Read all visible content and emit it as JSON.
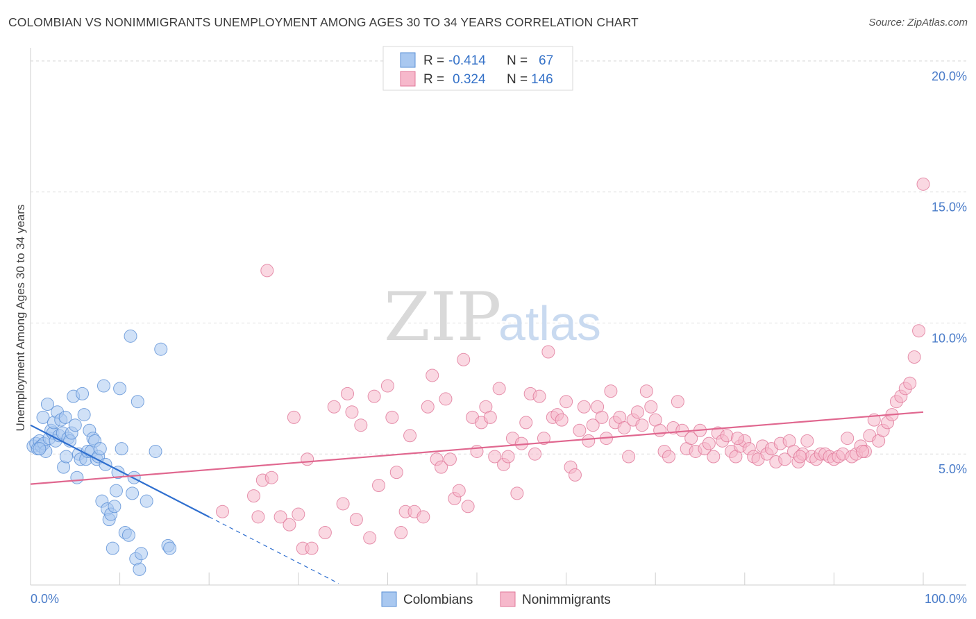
{
  "header": {
    "title": "COLOMBIAN VS NONIMMIGRANTS UNEMPLOYMENT AMONG AGES 30 TO 34 YEARS CORRELATION CHART",
    "source": "Source: ZipAtlas.com"
  },
  "watermark": {
    "zip": "ZIP",
    "atlas": "atlas"
  },
  "legend": {
    "rows": [
      {
        "r_label": "R =",
        "r_value": "-0.414",
        "n_label": "N =",
        "n_value": "67",
        "color": "#a9c8f0",
        "stroke": "#5a8fd6"
      },
      {
        "r_label": "R =",
        "r_value": "0.324",
        "n_label": "N =",
        "n_value": "146",
        "color": "#f6b8cb",
        "stroke": "#e07799"
      }
    ]
  },
  "bottom_legend": [
    "Colombians",
    "Nonimmigrants"
  ],
  "chart_data": {
    "type": "scatter",
    "ylabel": "Unemployment Among Ages 30 to 34 years",
    "xlim": [
      0,
      100
    ],
    "ylim": [
      0,
      20.5
    ],
    "x_tick_labels": [
      "0.0%",
      "100.0%"
    ],
    "y_ticks": [
      5,
      10,
      15,
      20
    ],
    "y_tick_labels": [
      "5.0%",
      "10.0%",
      "15.0%",
      "20.0%"
    ],
    "grid": true,
    "series": [
      {
        "name": "Colombians",
        "color": "#a9c8f0",
        "stroke": "#5a8fd6",
        "trend": {
          "x0": 0,
          "y0": 6.1,
          "x1": 20,
          "y1": 2.6,
          "dash_to_x": 34.5
        },
        "points": [
          [
            0.3,
            5.3
          ],
          [
            0.6,
            5.4
          ],
          [
            0.8,
            5.2
          ],
          [
            1.0,
            5.5
          ],
          [
            1.2,
            5.3
          ],
          [
            1.4,
            6.4
          ],
          [
            1.5,
            5.4
          ],
          [
            1.7,
            5.1
          ],
          [
            1.9,
            6.9
          ],
          [
            2.1,
            5.6
          ],
          [
            2.3,
            5.9
          ],
          [
            2.5,
            5.8
          ],
          [
            2.6,
            6.2
          ],
          [
            2.8,
            5.5
          ],
          [
            3.0,
            6.6
          ],
          [
            3.2,
            5.7
          ],
          [
            3.4,
            6.3
          ],
          [
            3.6,
            5.8
          ],
          [
            3.7,
            4.5
          ],
          [
            3.9,
            6.4
          ],
          [
            4.0,
            4.9
          ],
          [
            4.2,
            5.6
          ],
          [
            4.4,
            5.5
          ],
          [
            4.6,
            5.8
          ],
          [
            4.8,
            7.2
          ],
          [
            5.0,
            6.1
          ],
          [
            5.2,
            4.1
          ],
          [
            5.4,
            5.0
          ],
          [
            5.6,
            4.8
          ],
          [
            5.8,
            7.3
          ],
          [
            6.0,
            6.5
          ],
          [
            6.2,
            4.8
          ],
          [
            6.4,
            5.1
          ],
          [
            6.6,
            5.9
          ],
          [
            6.8,
            5.1
          ],
          [
            7.0,
            5.6
          ],
          [
            7.2,
            5.5
          ],
          [
            7.4,
            4.8
          ],
          [
            7.6,
            4.9
          ],
          [
            7.8,
            5.2
          ],
          [
            8.0,
            3.2
          ],
          [
            8.2,
            7.6
          ],
          [
            8.4,
            4.6
          ],
          [
            8.6,
            2.9
          ],
          [
            8.8,
            2.5
          ],
          [
            9.0,
            2.7
          ],
          [
            9.2,
            1.4
          ],
          [
            9.4,
            3.0
          ],
          [
            9.6,
            3.6
          ],
          [
            9.8,
            4.3
          ],
          [
            10.0,
            7.5
          ],
          [
            10.2,
            5.2
          ],
          [
            10.6,
            2.0
          ],
          [
            11.0,
            1.9
          ],
          [
            11.2,
            9.5
          ],
          [
            11.4,
            3.5
          ],
          [
            11.6,
            4.1
          ],
          [
            11.8,
            1.0
          ],
          [
            12.0,
            7.0
          ],
          [
            12.2,
            0.6
          ],
          [
            12.4,
            1.2
          ],
          [
            13.0,
            3.2
          ],
          [
            14.0,
            5.1
          ],
          [
            14.6,
            9.0
          ],
          [
            15.4,
            1.5
          ],
          [
            15.6,
            1.4
          ],
          [
            1.0,
            5.2
          ]
        ]
      },
      {
        "name": "Nonimmigrants",
        "color": "#f6b8cb",
        "stroke": "#e07799",
        "trend": {
          "x0": 0,
          "y0": 3.85,
          "x1": 100,
          "y1": 6.6
        },
        "points": [
          [
            21.5,
            2.8
          ],
          [
            25,
            3.4
          ],
          [
            25.5,
            2.6
          ],
          [
            26,
            4.0
          ],
          [
            26.5,
            12.0
          ],
          [
            27,
            4.1
          ],
          [
            28,
            2.6
          ],
          [
            29,
            2.3
          ],
          [
            29.5,
            6.4
          ],
          [
            30,
            2.7
          ],
          [
            30.5,
            1.4
          ],
          [
            31,
            4.8
          ],
          [
            31.5,
            1.4
          ],
          [
            33,
            2.0
          ],
          [
            34,
            6.8
          ],
          [
            35,
            3.1
          ],
          [
            35.5,
            7.3
          ],
          [
            36,
            6.6
          ],
          [
            36.5,
            2.5
          ],
          [
            37,
            6.1
          ],
          [
            38,
            1.8
          ],
          [
            38.5,
            7.2
          ],
          [
            39,
            3.8
          ],
          [
            40,
            7.6
          ],
          [
            40.5,
            6.4
          ],
          [
            41,
            4.3
          ],
          [
            41.5,
            2.0
          ],
          [
            42,
            2.8
          ],
          [
            42.5,
            5.7
          ],
          [
            43,
            2.8
          ],
          [
            44,
            2.6
          ],
          [
            44.5,
            6.8
          ],
          [
            45,
            8.0
          ],
          [
            45.5,
            4.8
          ],
          [
            46,
            4.5
          ],
          [
            46.5,
            7.1
          ],
          [
            47,
            4.8
          ],
          [
            47.5,
            3.3
          ],
          [
            48,
            3.6
          ],
          [
            48.5,
            8.6
          ],
          [
            49,
            3.0
          ],
          [
            49.5,
            6.4
          ],
          [
            50,
            5.1
          ],
          [
            50.5,
            6.2
          ],
          [
            51,
            6.8
          ],
          [
            51.5,
            6.4
          ],
          [
            52,
            4.9
          ],
          [
            52.5,
            7.5
          ],
          [
            53,
            4.6
          ],
          [
            53.5,
            4.9
          ],
          [
            54,
            5.6
          ],
          [
            54.5,
            3.5
          ],
          [
            55,
            5.4
          ],
          [
            55.5,
            6.2
          ],
          [
            56,
            7.3
          ],
          [
            56.5,
            5.0
          ],
          [
            57,
            7.2
          ],
          [
            57.5,
            5.6
          ],
          [
            58,
            8.9
          ],
          [
            58.5,
            6.4
          ],
          [
            59,
            6.5
          ],
          [
            59.5,
            6.3
          ],
          [
            60,
            7.0
          ],
          [
            60.5,
            4.5
          ],
          [
            61,
            4.2
          ],
          [
            61.5,
            5.9
          ],
          [
            62,
            6.8
          ],
          [
            62.5,
            5.5
          ],
          [
            63,
            6.1
          ],
          [
            63.5,
            6.8
          ],
          [
            64,
            6.4
          ],
          [
            64.5,
            5.6
          ],
          [
            65,
            7.4
          ],
          [
            65.5,
            6.2
          ],
          [
            66,
            6.4
          ],
          [
            66.5,
            6.0
          ],
          [
            67,
            4.9
          ],
          [
            67.5,
            6.3
          ],
          [
            68,
            6.6
          ],
          [
            68.5,
            6.1
          ],
          [
            69,
            7.4
          ],
          [
            69.5,
            6.8
          ],
          [
            70,
            6.3
          ],
          [
            70.5,
            5.9
          ],
          [
            71,
            5.1
          ],
          [
            71.5,
            4.9
          ],
          [
            72,
            6.0
          ],
          [
            72.5,
            7.0
          ],
          [
            73,
            5.9
          ],
          [
            73.5,
            5.2
          ],
          [
            74,
            5.6
          ],
          [
            74.5,
            5.1
          ],
          [
            75,
            5.9
          ],
          [
            75.5,
            5.2
          ],
          [
            76,
            5.4
          ],
          [
            76.5,
            4.9
          ],
          [
            77,
            5.8
          ],
          [
            77.5,
            5.5
          ],
          [
            78,
            5.7
          ],
          [
            78.5,
            5.1
          ],
          [
            79,
            4.9
          ],
          [
            79.5,
            5.3
          ],
          [
            80,
            5.5
          ],
          [
            80.5,
            5.2
          ],
          [
            81,
            4.9
          ],
          [
            81.5,
            4.8
          ],
          [
            82,
            5.3
          ],
          [
            82.5,
            5.0
          ],
          [
            83,
            5.2
          ],
          [
            83.5,
            4.7
          ],
          [
            84,
            5.4
          ],
          [
            84.5,
            4.8
          ],
          [
            85,
            5.5
          ],
          [
            85.5,
            5.1
          ],
          [
            86,
            4.7
          ],
          [
            86.5,
            5.0
          ],
          [
            87,
            5.5
          ],
          [
            87.5,
            4.9
          ],
          [
            88,
            4.8
          ],
          [
            88.5,
            5.0
          ],
          [
            89,
            5.0
          ],
          [
            89.5,
            4.9
          ],
          [
            90,
            4.8
          ],
          [
            90.5,
            4.9
          ],
          [
            91,
            5.0
          ],
          [
            91.5,
            5.6
          ],
          [
            92,
            4.9
          ],
          [
            92.5,
            5.0
          ],
          [
            93,
            5.3
          ],
          [
            93.5,
            5.1
          ],
          [
            94,
            5.7
          ],
          [
            94.5,
            6.3
          ],
          [
            95,
            5.5
          ],
          [
            95.5,
            5.9
          ],
          [
            96,
            6.2
          ],
          [
            96.5,
            6.5
          ],
          [
            97,
            7.0
          ],
          [
            97.5,
            7.2
          ],
          [
            98,
            7.5
          ],
          [
            98.5,
            7.7
          ],
          [
            99,
            8.7
          ],
          [
            99.5,
            9.7
          ],
          [
            100,
            15.3
          ],
          [
            93.2,
            5.1
          ],
          [
            86.2,
            4.9
          ],
          [
            79.2,
            5.6
          ]
        ]
      }
    ]
  }
}
